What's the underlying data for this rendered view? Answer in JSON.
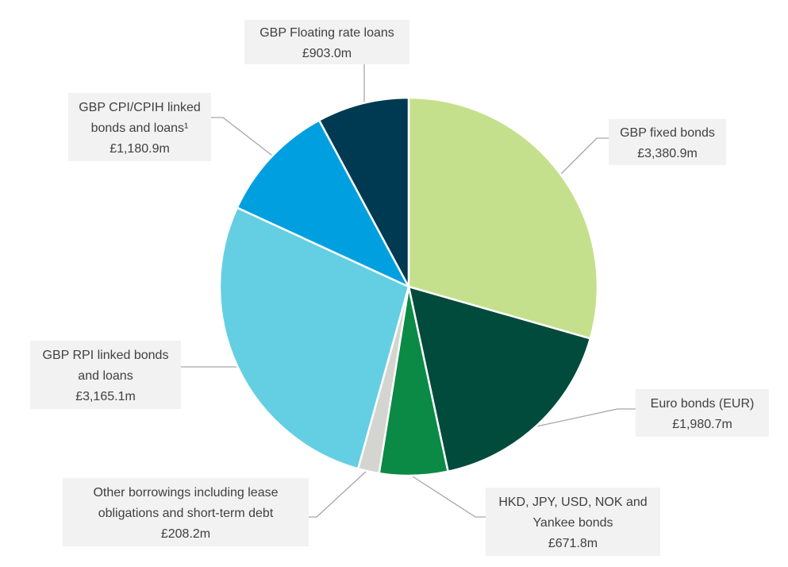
{
  "chart_data": {
    "type": "pie",
    "title": "",
    "start_angle_deg": 0,
    "direction": "clockwise",
    "series": [
      {
        "slices": [
          {
            "name": "GBP fixed bonds",
            "value": 3380.9,
            "value_label": "£3,380.9m",
            "label_lines": [
              "GBP fixed bonds",
              "£3,380.9m"
            ],
            "color": "#c5e08c"
          },
          {
            "name": "Euro bonds (EUR)",
            "value": 1980.7,
            "value_label": "£1,980.7m",
            "label_lines": [
              "Euro bonds (EUR)",
              "£1,980.7m"
            ],
            "color": "#004b3c"
          },
          {
            "name": "HKD, JPY, USD, NOK and Yankee bonds",
            "value": 671.8,
            "value_label": "£671.8m",
            "label_lines": [
              "HKD, JPY, USD, NOK and",
              "Yankee bonds",
              "£671.8m"
            ],
            "color": "#0a8a45"
          },
          {
            "name": "Other borrowings including lease obligations and short-term debt",
            "value": 208.2,
            "value_label": "£208.2m",
            "label_lines": [
              "Other borrowings including lease",
              "obligations and short-term debt",
              "£208.2m"
            ],
            "color": "#d4d4d0"
          },
          {
            "name": "GBP RPI linked bonds and loans",
            "value": 3165.1,
            "value_label": "£3,165.1m",
            "label_lines": [
              "GBP RPI linked bonds",
              "and loans",
              "£3,165.1m"
            ],
            "color": "#64cfe3"
          },
          {
            "name": "GBP CPI/CPIH linked bonds and loans¹",
            "value": 1180.9,
            "value_label": "£1,180.9m",
            "label_lines": [
              "GBP CPI/CPIH linked",
              "bonds and loans¹",
              "£1,180.9m"
            ],
            "color": "#00a0e0"
          },
          {
            "name": "GBP Floating rate loans",
            "value": 903.0,
            "value_label": "£903.0m",
            "label_lines": [
              "GBP Floating rate loans",
              "£903.0m"
            ],
            "color": "#003a52"
          }
        ]
      }
    ],
    "legend": "none",
    "label_background": "#f2f2f2",
    "leader_line_color": "#a6a6a6"
  }
}
